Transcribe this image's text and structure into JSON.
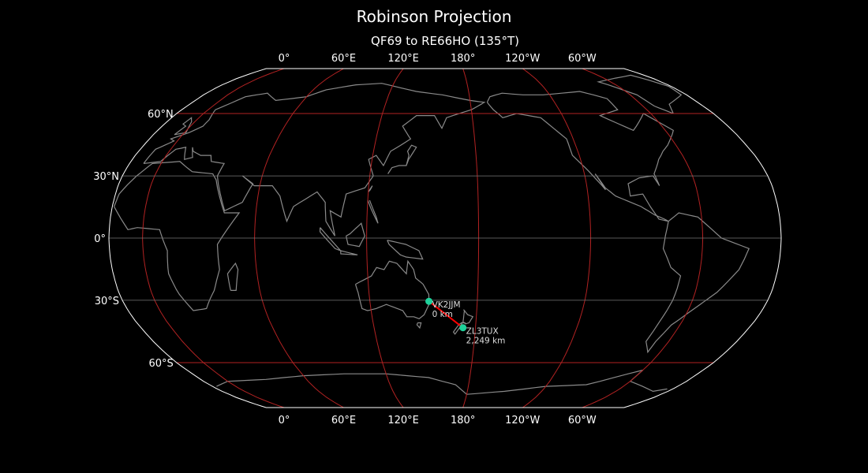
{
  "title": "Robinson Projection",
  "subtitle": "QF69 to RE66HO (135°T)",
  "projection": {
    "type": "Robinson",
    "central_longitude": 162
  },
  "colors": {
    "background": "#000000",
    "coastline": "#8a8a8a",
    "graticule_major": "#b22222",
    "graticule_minor": "#777777",
    "outline": "#ffffff",
    "path": "#ff0000",
    "marker": "#1fd19b"
  },
  "lon_ticks": [
    {
      "lon": 0,
      "label": "0°"
    },
    {
      "lon": 60,
      "label": "60°E"
    },
    {
      "lon": 120,
      "label": "120°E"
    },
    {
      "lon": 180,
      "label": "180°"
    },
    {
      "lon": -120,
      "label": "120°W"
    },
    {
      "lon": -60,
      "label": "60°W"
    }
  ],
  "lat_ticks": [
    {
      "lat": 60,
      "label": "60°N"
    },
    {
      "lat": 30,
      "label": "30°N"
    },
    {
      "lat": 0,
      "label": "0°"
    },
    {
      "lat": -30,
      "label": "30°S"
    },
    {
      "lat": -60,
      "label": "60°S"
    }
  ],
  "stations": [
    {
      "call": "VK2JJM",
      "distance": "0 km",
      "lon": 153,
      "lat": -30.5
    },
    {
      "call": "ZL3TUX",
      "distance": "2,249 km",
      "lon": 172.6,
      "lat": -43.4
    }
  ]
}
